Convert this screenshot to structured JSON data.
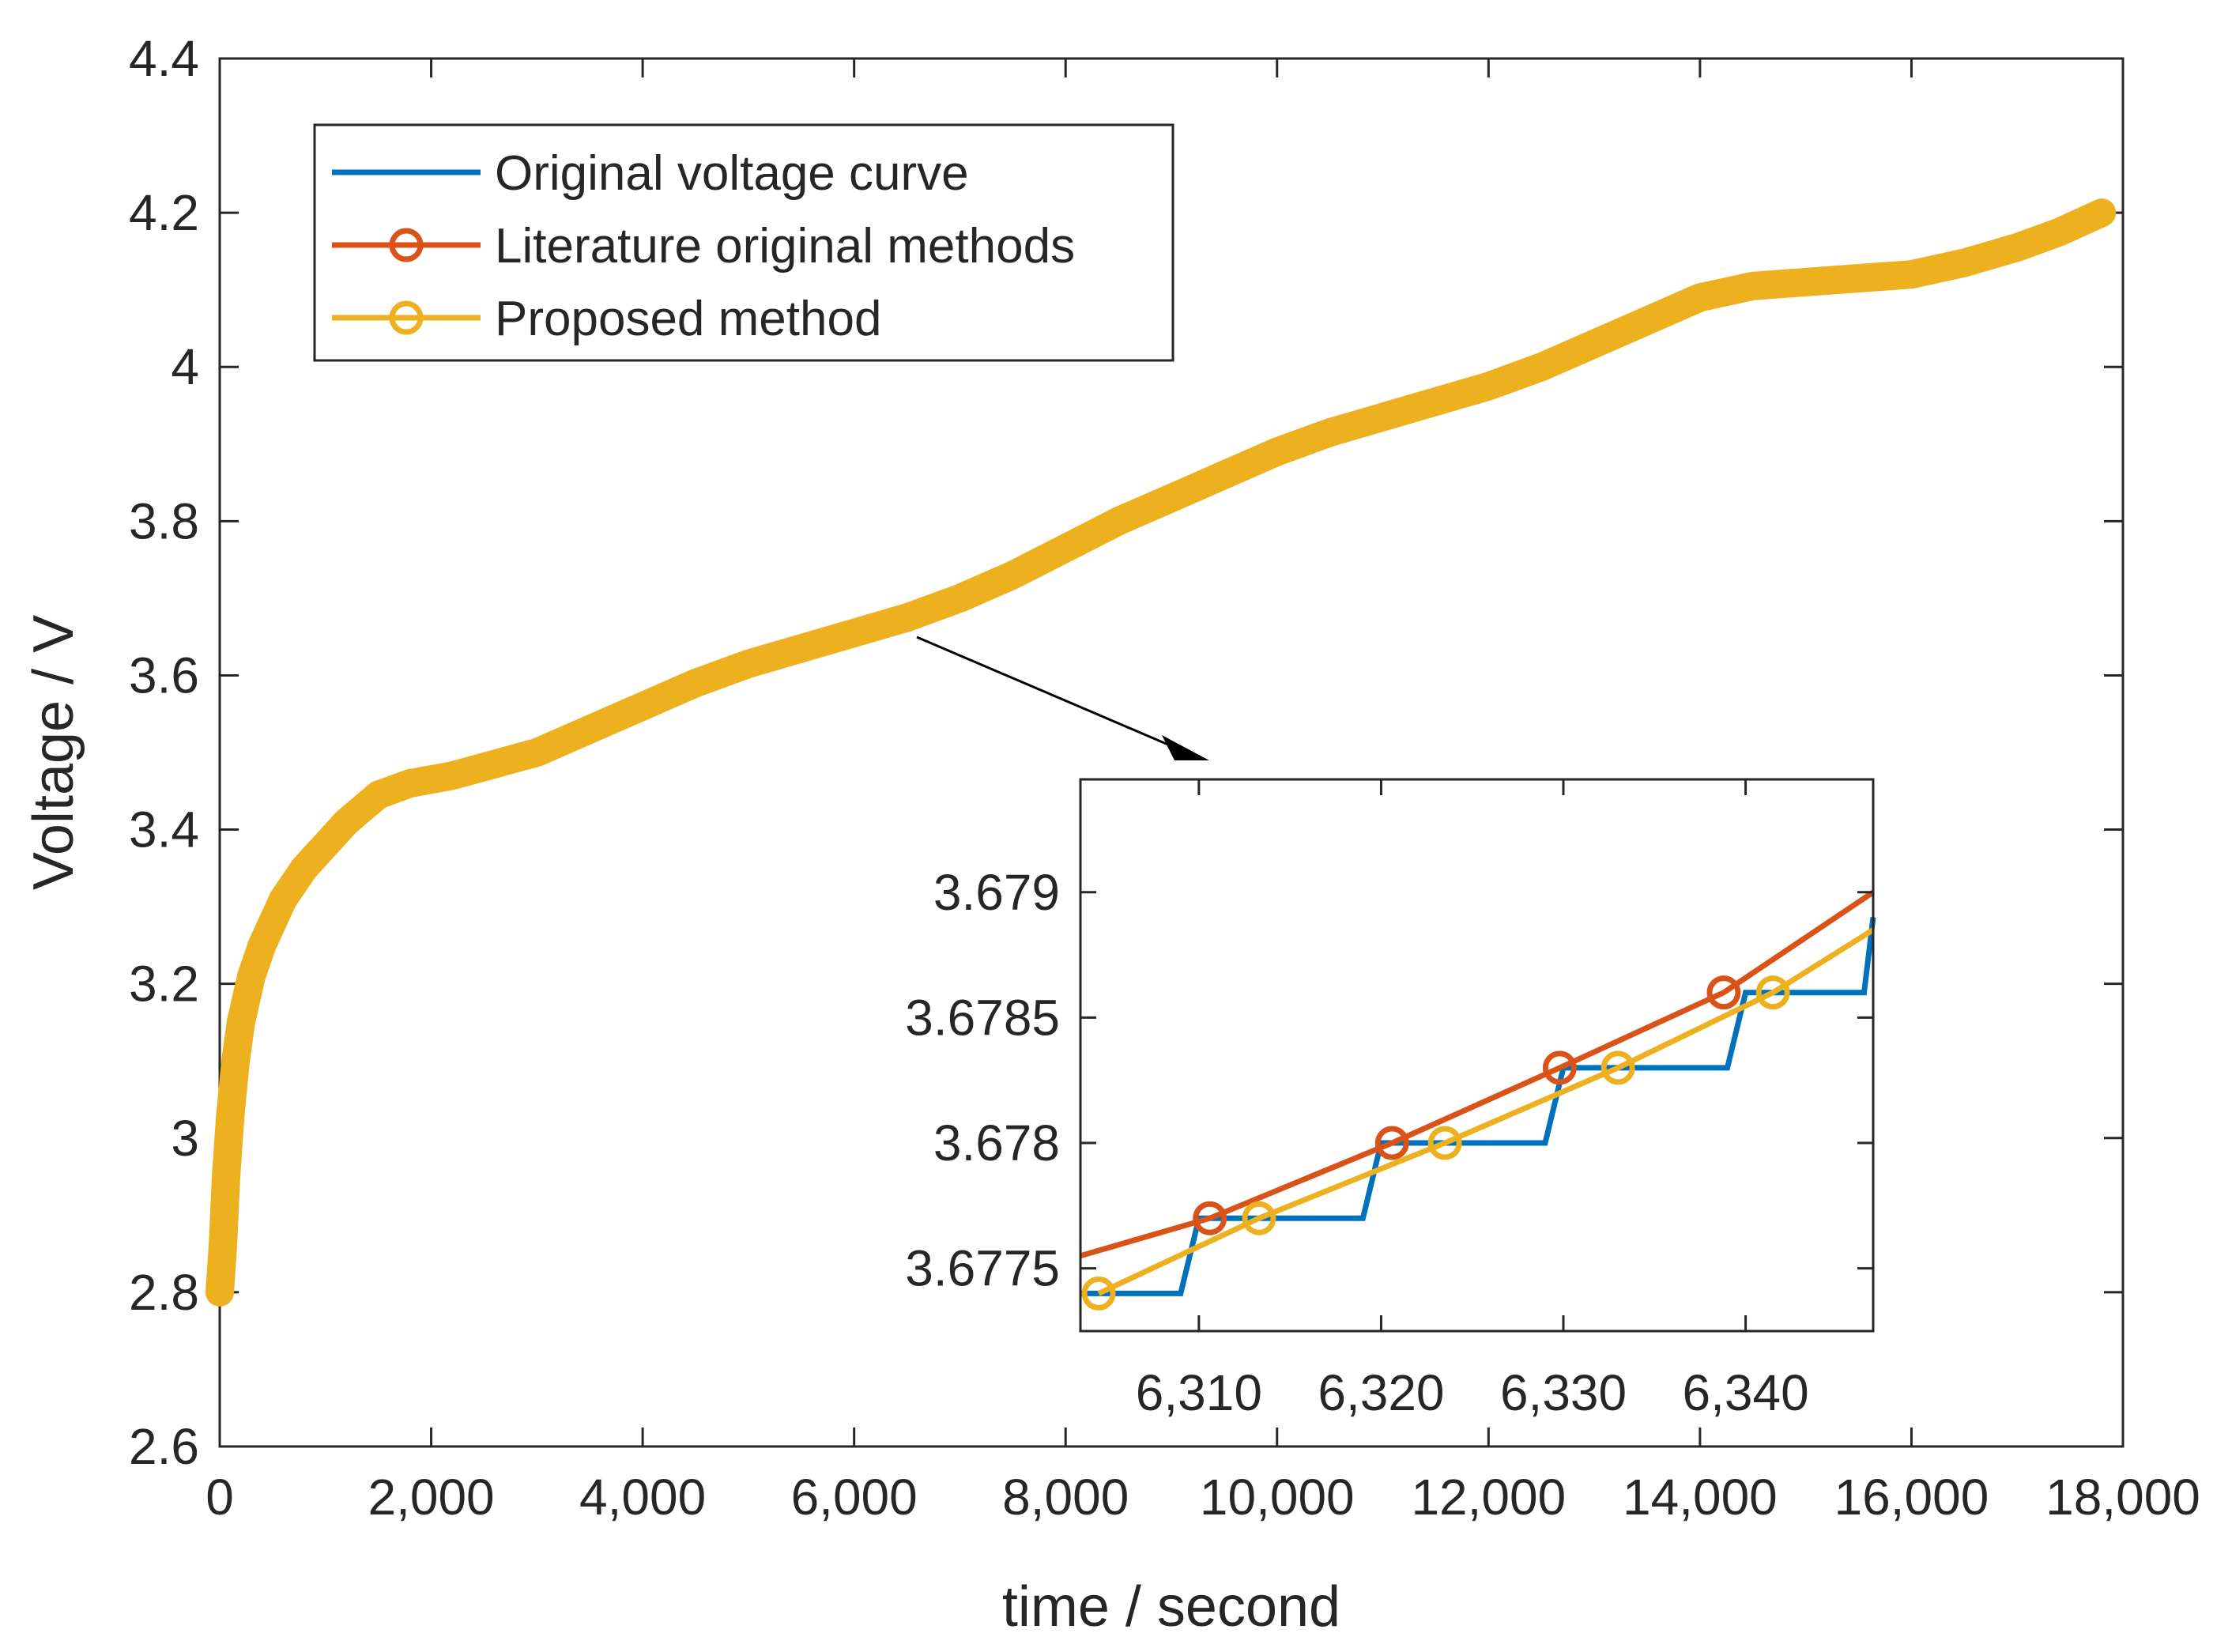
{
  "chart_data": [
    {
      "type": "line",
      "title": "",
      "xlabel": "time / second",
      "ylabel": "Voltage / V",
      "xlim": [
        0,
        18000
      ],
      "ylim": [
        2.6,
        4.4
      ],
      "xticks": [
        0,
        2000,
        4000,
        6000,
        8000,
        10000,
        12000,
        14000,
        16000,
        18000
      ],
      "xtick_labels": [
        "0",
        "2,000",
        "4,000",
        "6,000",
        "8,000",
        "10,000",
        "12,000",
        "14,000",
        "16,000",
        "18,000"
      ],
      "yticks": [
        2.6,
        2.8,
        3.0,
        3.2,
        3.4,
        3.6,
        3.8,
        4.0,
        4.2,
        4.4
      ],
      "ytick_labels": [
        "2.6",
        "2.8",
        "3",
        "3.2",
        "3.4",
        "3.6",
        "3.8",
        "4",
        "4.2",
        "4.4"
      ],
      "grid": false,
      "legend_position": "top-left",
      "legend": [
        {
          "label": "Original voltage curve",
          "color": "#0072BD",
          "marker": "none"
        },
        {
          "label": "Literature original methods",
          "color": "#D95319",
          "marker": "circle"
        },
        {
          "label": "Proposed method",
          "color": "#EDB120",
          "marker": "circle"
        }
      ],
      "series": [
        {
          "name": "Proposed method",
          "color": "#EDB120",
          "x": [
            0,
            30,
            60,
            100,
            150,
            200,
            300,
            400,
            500,
            600,
            800,
            1000,
            1200,
            1500,
            1800,
            2200,
            2600,
            3000,
            3500,
            4000,
            4500,
            5000,
            5500,
            6000,
            6500,
            7000,
            7500,
            8000,
            8500,
            9000,
            9500,
            10000,
            10500,
            11000,
            11500,
            12000,
            12500,
            13000,
            13500,
            14000,
            14500,
            15000,
            15500,
            16000,
            16500,
            17000,
            17400,
            17800
          ],
          "y": [
            2.8,
            2.86,
            2.95,
            3.03,
            3.1,
            3.15,
            3.21,
            3.25,
            3.28,
            3.31,
            3.35,
            3.38,
            3.41,
            3.445,
            3.46,
            3.47,
            3.485,
            3.5,
            3.53,
            3.56,
            3.59,
            3.615,
            3.635,
            3.655,
            3.675,
            3.7,
            3.73,
            3.765,
            3.8,
            3.83,
            3.86,
            3.89,
            3.915,
            3.935,
            3.955,
            3.975,
            4.0,
            4.03,
            4.06,
            4.09,
            4.105,
            4.11,
            4.115,
            4.12,
            4.135,
            4.155,
            4.175,
            4.2
          ]
        }
      ],
      "annotations": [
        {
          "type": "arrow",
          "from": {
            "x": 6000,
            "y": 3.68
          },
          "to_inset": "zoom"
        }
      ]
    },
    {
      "type": "line",
      "id": "inset-zoom",
      "title": "",
      "xlim": [
        6303.5,
        6347
      ],
      "ylim": [
        3.67725,
        3.67945
      ],
      "xticks": [
        6310,
        6320,
        6330,
        6340
      ],
      "xtick_labels": [
        "6,310",
        "6,320",
        "6,330",
        "6,340"
      ],
      "yticks": [
        3.6775,
        3.678,
        3.6785,
        3.679
      ],
      "ytick_labels": [
        "3.6775",
        "3.678",
        "3.6785",
        "3.679"
      ],
      "grid": false,
      "series": [
        {
          "name": "Original voltage curve",
          "color": "#0072BD",
          "x": [
            6303.5,
            6309.0,
            6310.0,
            6313.5,
            6319.0,
            6320.0,
            6323.5,
            6329.0,
            6330.0,
            6333.5,
            6339.0,
            6340.0,
            6343.5,
            6346.5,
            6347
          ],
          "y": [
            3.6774,
            3.6774,
            3.6777,
            3.6777,
            3.6777,
            3.678,
            3.678,
            3.678,
            3.6783,
            3.6783,
            3.6783,
            3.6786,
            3.6786,
            3.6786,
            3.6789
          ]
        },
        {
          "name": "Literature original methods",
          "color": "#D95319",
          "x": [
            6303.5,
            6310.6,
            6320.6,
            6329.8,
            6338.8,
            6347
          ],
          "y": [
            3.67755,
            3.6777,
            3.678,
            3.6783,
            3.6786,
            3.679
          ],
          "markers_x": [
            6310.6,
            6320.6,
            6329.8,
            6338.8
          ],
          "markers_y": [
            3.6777,
            3.678,
            3.6783,
            3.6786
          ]
        },
        {
          "name": "Proposed method",
          "color": "#EDB120",
          "x": [
            6304.5,
            6313.3,
            6323.5,
            6333.0,
            6341.5,
            6347
          ],
          "y": [
            3.6774,
            3.6777,
            3.678,
            3.6783,
            3.6786,
            3.67885
          ],
          "markers_x": [
            6304.5,
            6313.3,
            6323.5,
            6333.0,
            6341.5
          ],
          "markers_y": [
            3.6774,
            3.6777,
            3.678,
            3.6783,
            3.6786
          ]
        }
      ]
    }
  ]
}
